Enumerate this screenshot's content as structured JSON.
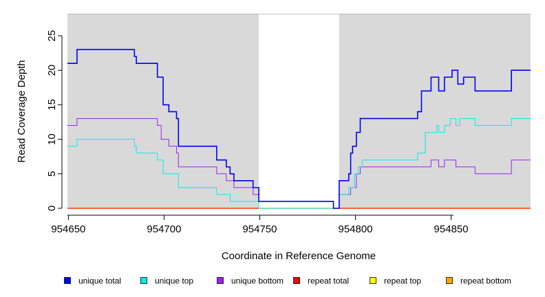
{
  "chart_data": {
    "type": "line",
    "title": "",
    "xlabel": "Coordinate in Reference Genome",
    "ylabel": "Read Coverage Depth",
    "xlim": [
      954649.5,
      954891.5
    ],
    "ylim": [
      0,
      28
    ],
    "xticks": [
      954650,
      954700,
      954750,
      954800,
      954850
    ],
    "xtick_labels": [
      "954650",
      "954700",
      "954750",
      "954800",
      "954850"
    ],
    "yticks": [
      0,
      5,
      10,
      15,
      20,
      25
    ],
    "ytick_labels": [
      "0",
      "5",
      "10",
      "15",
      "20",
      "25"
    ],
    "shaded_regions": [
      {
        "x_start": 954649.5,
        "x_end": 954749.5,
        "color": "#d9d9d9"
      },
      {
        "x_start": 954791.5,
        "x_end": 954891.5,
        "color": "#d9d9d9"
      }
    ],
    "series": [
      {
        "name": "unique total",
        "color": "#0000ee",
        "width": 1.6,
        "steps": [
          [
            954649.5,
            21
          ],
          [
            954654.5,
            23
          ],
          [
            954684.5,
            22
          ],
          [
            954685.5,
            21
          ],
          [
            954696.5,
            19
          ],
          [
            954699.5,
            15
          ],
          [
            954702.5,
            14
          ],
          [
            954706.5,
            13
          ],
          [
            954707.5,
            9
          ],
          [
            954727.5,
            7
          ],
          [
            954732.5,
            6
          ],
          [
            954734.5,
            5
          ],
          [
            954736.5,
            4
          ],
          [
            954746.5,
            3
          ],
          [
            954749.5,
            1
          ],
          [
            954788.5,
            0
          ],
          [
            954791.5,
            4
          ],
          [
            954796.5,
            5
          ],
          [
            954797.5,
            8
          ],
          [
            954798.5,
            9
          ],
          [
            954800.5,
            11
          ],
          [
            954802.5,
            13
          ],
          [
            954832.5,
            14
          ],
          [
            954834.5,
            17
          ],
          [
            954839.5,
            19
          ],
          [
            954843.5,
            17
          ],
          [
            954846.5,
            19
          ],
          [
            954850.5,
            20
          ],
          [
            954853.5,
            18
          ],
          [
            954856.5,
            19
          ],
          [
            954862.5,
            17
          ],
          [
            954881.5,
            20
          ]
        ]
      },
      {
        "name": "unique top",
        "color": "#00eeee",
        "width": 1,
        "steps": [
          [
            954649.5,
            9
          ],
          [
            954654.5,
            10
          ],
          [
            954684.5,
            9
          ],
          [
            954685.5,
            8
          ],
          [
            954696.5,
            7
          ],
          [
            954699.5,
            5
          ],
          [
            954707.5,
            3
          ],
          [
            954727.5,
            2
          ],
          [
            954734.5,
            1
          ],
          [
            954749.5,
            0
          ],
          [
            954791.5,
            2
          ],
          [
            954796.5,
            3
          ],
          [
            954799.5,
            5
          ],
          [
            954801.5,
            6
          ],
          [
            954803.5,
            7
          ],
          [
            954832.5,
            8
          ],
          [
            954836.5,
            11
          ],
          [
            954842.5,
            12
          ],
          [
            954843.5,
            11
          ],
          [
            954846.5,
            12
          ],
          [
            954849.5,
            13
          ],
          [
            954852.5,
            12
          ],
          [
            954854.5,
            13
          ],
          [
            954862.5,
            12
          ],
          [
            954881.5,
            13
          ]
        ]
      },
      {
        "name": "unique bottom",
        "color": "#a020f0",
        "width": 1,
        "steps": [
          [
            954649.5,
            12
          ],
          [
            954654.5,
            13
          ],
          [
            954696.5,
            12
          ],
          [
            954698.5,
            10
          ],
          [
            954702.5,
            9
          ],
          [
            954706.5,
            8
          ],
          [
            954707.5,
            6
          ],
          [
            954727.5,
            5
          ],
          [
            954732.5,
            4
          ],
          [
            954736.5,
            3
          ],
          [
            954746.5,
            2
          ],
          [
            954749.5,
            1
          ],
          [
            954788.5,
            0
          ],
          [
            954791.5,
            2
          ],
          [
            954797.5,
            3
          ],
          [
            954800.5,
            5
          ],
          [
            954802.5,
            6
          ],
          [
            954839.5,
            7
          ],
          [
            954843.5,
            6
          ],
          [
            954846.5,
            7
          ],
          [
            954852.5,
            6
          ],
          [
            954862.5,
            5
          ],
          [
            954881.5,
            7
          ]
        ]
      },
      {
        "name": "repeat total",
        "color": "#ff0000",
        "width": 1,
        "steps": [
          [
            954649.5,
            0
          ]
        ]
      },
      {
        "name": "repeat top",
        "color": "#ffff00",
        "width": 1,
        "steps": [
          [
            954649.5,
            0
          ]
        ]
      },
      {
        "name": "repeat bottom",
        "color": "#ffa500",
        "width": 1.4,
        "steps": [
          [
            954649.5,
            0
          ]
        ]
      }
    ],
    "legend_position": "bottom"
  }
}
